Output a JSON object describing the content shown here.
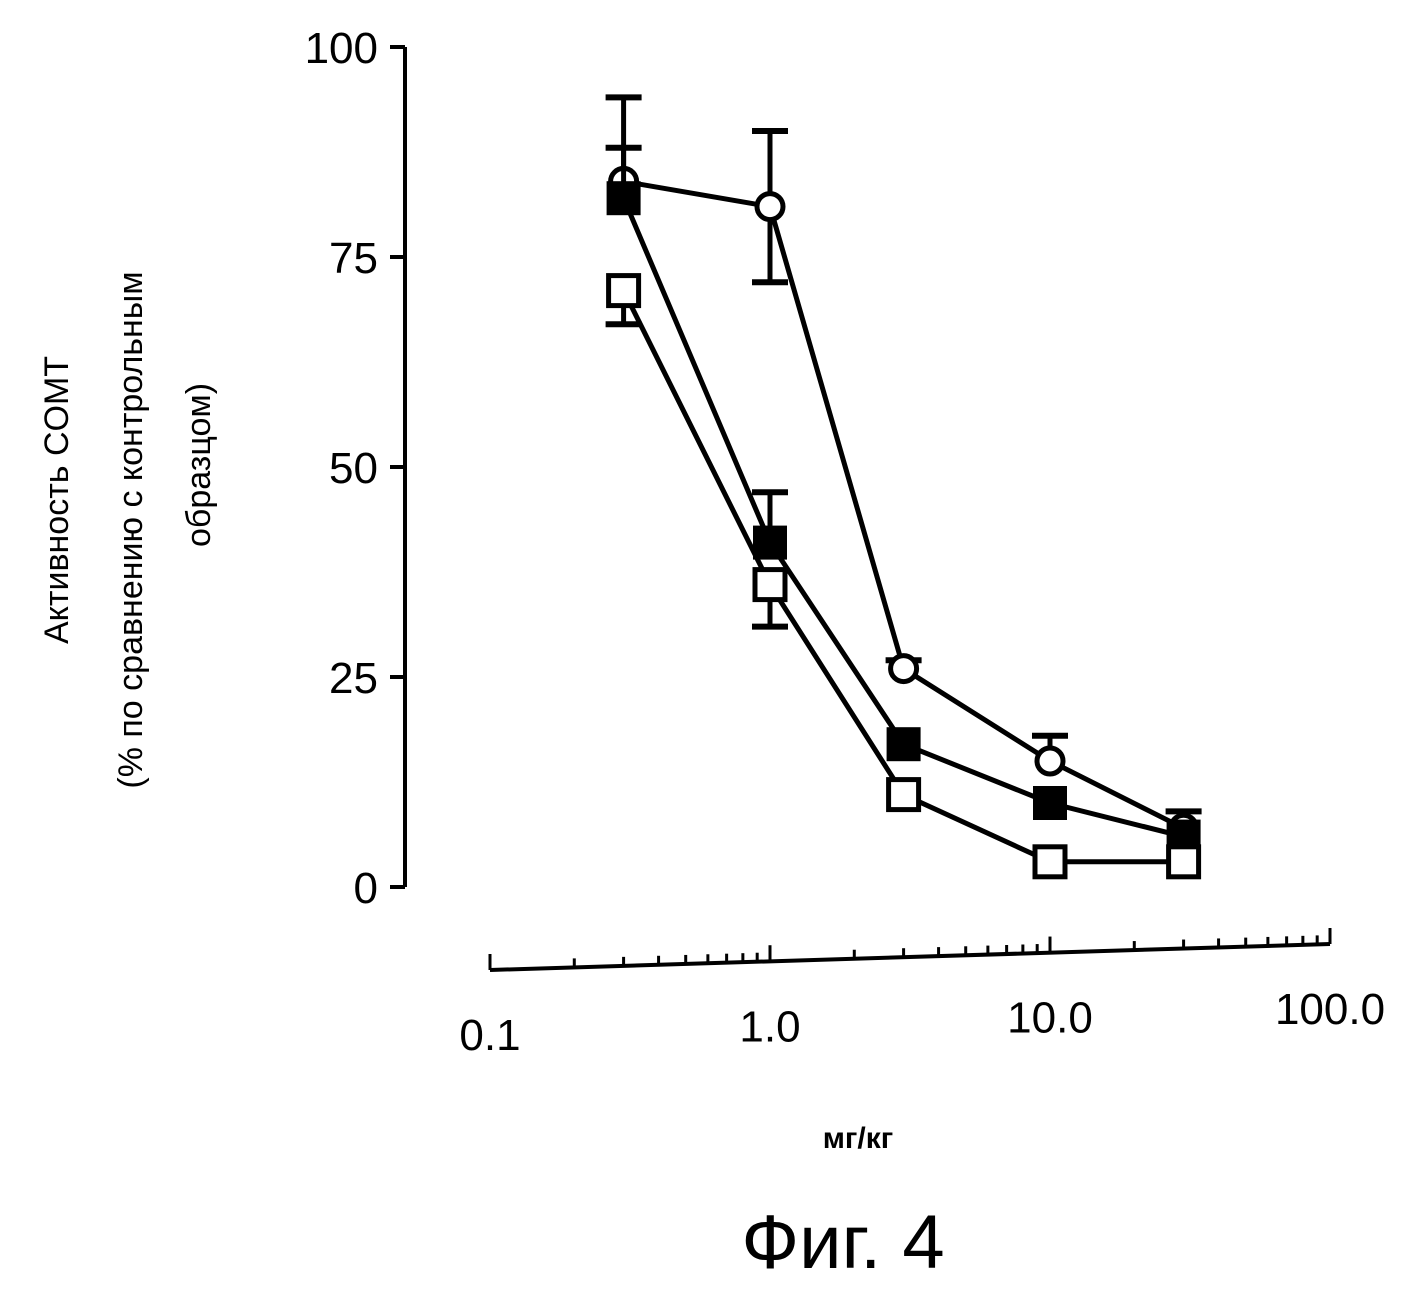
{
  "chart_data": {
    "type": "line",
    "title": "",
    "xlabel": "мг/кг",
    "ylabel_lines": [
      "Активность COMT",
      "(% по сравнению с контрольным",
      "образцом)"
    ],
    "caption": "Фиг. 4",
    "xscale": "log",
    "xlim": [
      0.1,
      100
    ],
    "ylim": [
      0,
      100
    ],
    "xticks": [
      0.1,
      1.0,
      10.0,
      100.0
    ],
    "xtick_labels": [
      "0.1",
      "1.0",
      "10.0",
      "100.0"
    ],
    "yticks": [
      0,
      25,
      50,
      75,
      100
    ],
    "ytick_labels": [
      "0",
      "25",
      "50",
      "75",
      "100"
    ],
    "x": [
      0.3,
      1.0,
      3.0,
      10.0,
      30.0
    ],
    "series": [
      {
        "name": "open-circle",
        "marker": "circle-open",
        "values": [
          84,
          81,
          26,
          15,
          7
        ],
        "err_hi": [
          94,
          90,
          27,
          18,
          9
        ],
        "err_lo": [
          84,
          72,
          26,
          15,
          7
        ]
      },
      {
        "name": "filled-square",
        "marker": "square-filled",
        "values": [
          82,
          41,
          17,
          10,
          6
        ],
        "err_hi": [
          88,
          47,
          17,
          10,
          6
        ],
        "err_lo": [
          82,
          41,
          17,
          10,
          6
        ]
      },
      {
        "name": "open-square",
        "marker": "square-open",
        "values": [
          71,
          36,
          11,
          3,
          3
        ],
        "err_hi": [
          71,
          36,
          11,
          3,
          3
        ],
        "err_lo": [
          67,
          31,
          11,
          3,
          3
        ]
      }
    ]
  }
}
